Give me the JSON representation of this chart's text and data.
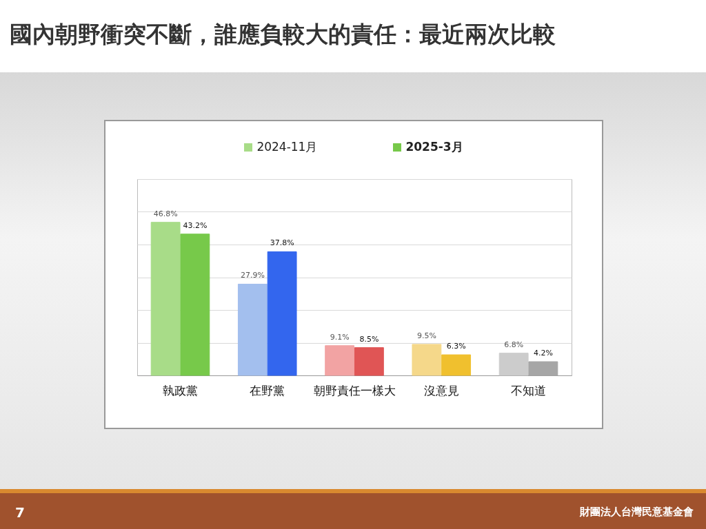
{
  "chart_data": {
    "type": "bar",
    "title": "國內朝野衝突不斷，誰應負較大的責任：最近兩次比較",
    "categories": [
      "執政黨",
      "在野黨",
      "朝野責任一樣大",
      "沒意見",
      "不知道"
    ],
    "series": [
      {
        "name": "2024-11月",
        "color": "#a8dc88",
        "colors": [
          "#a8dc88",
          "#a3bfee",
          "#f2a3a3",
          "#f5d88a",
          "#cccccc"
        ],
        "values": [
          46.8,
          27.9,
          9.1,
          9.5,
          6.8
        ],
        "value_labels": [
          "46.8%",
          "27.9%",
          "9.1%",
          "9.5%",
          "6.8%"
        ]
      },
      {
        "name": "2025-3月",
        "color": "#77c94a",
        "colors": [
          "#77c94a",
          "#3366ee",
          "#e05555",
          "#f0c02e",
          "#a6a6a6"
        ],
        "values": [
          43.2,
          37.8,
          8.5,
          6.3,
          4.2
        ],
        "value_labels": [
          "43.2%",
          "37.8%",
          "8.5%",
          "6.3%",
          "4.2%"
        ]
      }
    ],
    "ylim": [
      0,
      60
    ],
    "yticks": [
      {
        "value": 0,
        "label": null
      },
      {
        "value": 10,
        "label": null
      },
      {
        "value": 20,
        "label": null
      },
      {
        "value": 30,
        "label": null
      },
      {
        "value": 40,
        "label": null
      },
      {
        "value": 50,
        "label": null
      },
      {
        "value": 60,
        "label": null
      }
    ],
    "grid": "y",
    "legend": "top",
    "tick_labels": "x",
    "annotations": [
      "7",
      "財團法人台灣民意基金會"
    ]
  }
}
